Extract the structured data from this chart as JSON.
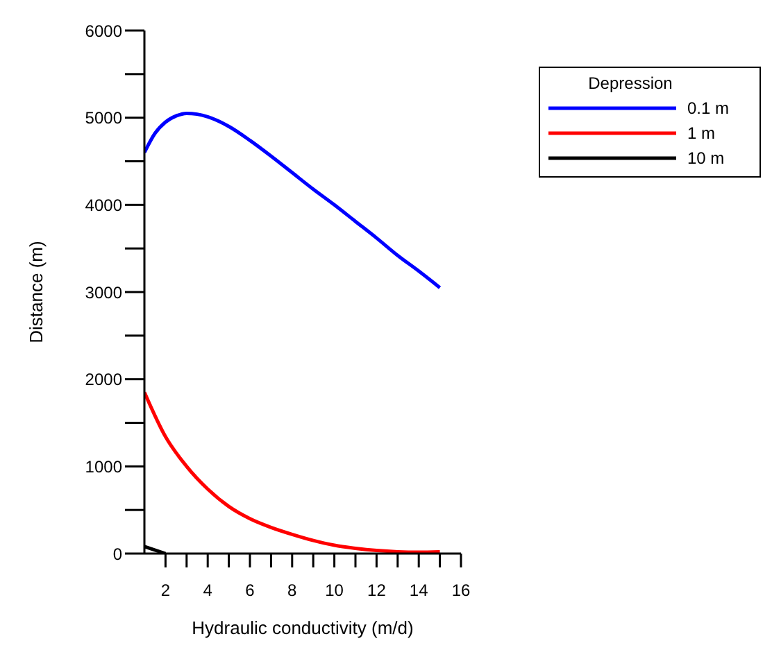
{
  "chart_data": {
    "type": "line",
    "xlabel": "Hydraulic conductivity (m/d)",
    "ylabel": "Distance (m)",
    "legend_title": "Depression",
    "legend": "top right",
    "grid": false,
    "marker": "none",
    "line_style": "solid",
    "xlim": [
      1,
      16
    ],
    "xticks": [
      2,
      {
        "value": 3,
        "label": null
      },
      4,
      {
        "value": 5,
        "label": null
      },
      6,
      {
        "value": 7,
        "label": null
      },
      8,
      {
        "value": 9,
        "label": null
      },
      10,
      {
        "value": 11,
        "label": null
      },
      12,
      {
        "value": 13,
        "label": null
      },
      14,
      {
        "value": 15,
        "label": null
      },
      16
    ],
    "ylim": [
      0,
      6000
    ],
    "yticks": [
      0,
      {
        "value": 500,
        "label": null
      },
      1000,
      {
        "value": 1500,
        "label": null
      },
      2000,
      {
        "value": 2500,
        "label": null
      },
      3000,
      {
        "value": 3500,
        "label": null
      },
      4000,
      {
        "value": 4500,
        "label": null
      },
      5000,
      {
        "value": 5500,
        "label": null
      },
      6000
    ],
    "series": [
      {
        "name": "0.1 m",
        "color": "#0000ff",
        "x": [
          1,
          1.5,
          2,
          2.5,
          3,
          3.5,
          4,
          5,
          6,
          7,
          8,
          9,
          10,
          11,
          12,
          13,
          14,
          15
        ],
        "values": [
          4600,
          4820,
          4950,
          5020,
          5050,
          5040,
          5010,
          4900,
          4740,
          4560,
          4370,
          4180,
          4000,
          3810,
          3620,
          3420,
          3240,
          3050
        ]
      },
      {
        "name": "1 m",
        "color": "#ff0000",
        "x": [
          1,
          2,
          3,
          4,
          5,
          6,
          7,
          8,
          9,
          10,
          11,
          12,
          13,
          14,
          15
        ],
        "values": [
          1850,
          1340,
          1000,
          740,
          540,
          400,
          300,
          220,
          150,
          95,
          60,
          35,
          20,
          15,
          20
        ]
      },
      {
        "name": "10 m",
        "color": "#000000",
        "x": [
          1,
          2
        ],
        "values": [
          80,
          0
        ]
      }
    ]
  }
}
